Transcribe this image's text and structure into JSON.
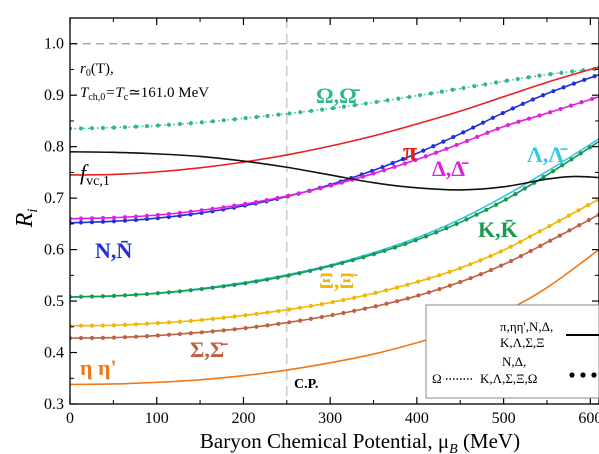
{
  "chart_data": {
    "type": "line",
    "xlabel": "Baryon Chemical Potential, μ",
    "xlabel_sub": "B",
    "xlabel_units": " (MeV)",
    "ylabel": "R",
    "ylabel_sub": "i",
    "xlim": [
      0,
      610
    ],
    "ylim": [
      0.3,
      1.05
    ],
    "x_ticks": [
      0,
      100,
      200,
      300,
      400,
      500,
      600
    ],
    "x_tick_labels": [
      "0",
      "100",
      "200",
      "300",
      "400",
      "500",
      "600"
    ],
    "y_ticks": [
      0.3,
      0.4,
      0.5,
      0.6,
      0.7,
      0.8,
      0.9,
      1.0
    ],
    "y_tick_labels": [
      "0.3",
      "0.4",
      "0.5",
      "0.6",
      "0.7",
      "0.8",
      "0.9",
      "1.0"
    ],
    "grid": false,
    "reference_lines": [
      {
        "orientation": "horizontal",
        "value": 1.0,
        "style": "dashed",
        "color": "#999999"
      },
      {
        "orientation": "vertical",
        "value": 250,
        "style": "dashed",
        "color": "#bbbbbb"
      }
    ],
    "series": [
      {
        "name": "Ω,Ω̄",
        "color": "#2fb88a",
        "style": "dotted",
        "x": [
          0,
          50,
          100,
          150,
          200,
          250,
          300,
          350,
          400,
          450,
          500,
          550,
          610
        ],
        "y": [
          0.835,
          0.837,
          0.841,
          0.847,
          0.855,
          0.864,
          0.874,
          0.886,
          0.899,
          0.913,
          0.927,
          0.94,
          0.952
        ]
      },
      {
        "name": "π",
        "color": "#e8201f",
        "style": "solid",
        "x": [
          0,
          50,
          100,
          150,
          200,
          250,
          300,
          350,
          400,
          450,
          500,
          550,
          610
        ],
        "y": [
          0.745,
          0.746,
          0.751,
          0.759,
          0.77,
          0.784,
          0.801,
          0.821,
          0.844,
          0.869,
          0.897,
          0.925,
          0.955
        ]
      },
      {
        "name": "N,N̄",
        "color": "#1f2fd8",
        "style": "solid_dots",
        "x": [
          0,
          50,
          100,
          150,
          200,
          250,
          300,
          350,
          400,
          450,
          500,
          550,
          610
        ],
        "y": [
          0.652,
          0.655,
          0.661,
          0.671,
          0.685,
          0.703,
          0.726,
          0.754,
          0.787,
          0.825,
          0.866,
          0.903,
          0.94
        ]
      },
      {
        "name": "Δ,Δ̄",
        "color": "#e020e0",
        "style": "solid_dots",
        "x": [
          0,
          50,
          100,
          150,
          200,
          250,
          300,
          350,
          400,
          450,
          500,
          550,
          610
        ],
        "y": [
          0.66,
          0.662,
          0.667,
          0.676,
          0.688,
          0.704,
          0.724,
          0.748,
          0.775,
          0.806,
          0.839,
          0.865,
          0.897
        ]
      },
      {
        "name": "Λ,Λ̄",
        "color": "#30c8e8",
        "style": "solid",
        "x": [
          0,
          50,
          100,
          150,
          200,
          250,
          300,
          350,
          400,
          450,
          500,
          550,
          610
        ],
        "y": [
          0.508,
          0.51,
          0.515,
          0.524,
          0.536,
          0.551,
          0.57,
          0.594,
          0.623,
          0.659,
          0.703,
          0.752,
          0.815
        ]
      },
      {
        "name": "K,K̄",
        "color": "#159a50",
        "style": "solid_dots",
        "x": [
          0,
          50,
          100,
          150,
          200,
          250,
          300,
          350,
          400,
          450,
          500,
          550,
          610
        ],
        "y": [
          0.508,
          0.51,
          0.515,
          0.523,
          0.534,
          0.549,
          0.568,
          0.591,
          0.619,
          0.653,
          0.695,
          0.745,
          0.81
        ]
      },
      {
        "name": "f_vc,1",
        "color": "#111111",
        "style": "solid",
        "x": [
          0,
          50,
          100,
          150,
          200,
          250,
          300,
          350,
          400,
          450,
          500,
          550,
          580,
          610
        ],
        "y": [
          0.79,
          0.789,
          0.786,
          0.781,
          0.772,
          0.76,
          0.745,
          0.73,
          0.72,
          0.716,
          0.722,
          0.737,
          0.742,
          0.74
        ]
      },
      {
        "name": "Ξ,Ξ̄",
        "color": "#f0b800",
        "style": "solid_dots",
        "x": [
          0,
          50,
          100,
          150,
          200,
          250,
          300,
          350,
          400,
          450,
          500,
          550,
          610
        ],
        "y": [
          0.452,
          0.453,
          0.457,
          0.463,
          0.472,
          0.483,
          0.497,
          0.515,
          0.537,
          0.564,
          0.599,
          0.643,
          0.698
        ]
      },
      {
        "name": "Σ,Σ̄",
        "color": "#c06040",
        "style": "solid_dots",
        "x": [
          0,
          50,
          100,
          150,
          200,
          250,
          300,
          350,
          400,
          450,
          500,
          550,
          610
        ],
        "y": [
          0.428,
          0.429,
          0.433,
          0.439,
          0.447,
          0.458,
          0.472,
          0.489,
          0.51,
          0.537,
          0.571,
          0.614,
          0.668
        ]
      },
      {
        "name": "η η'",
        "color": "#f07818",
        "style": "solid",
        "x": [
          0,
          50,
          100,
          150,
          200,
          250,
          300,
          350,
          400,
          450,
          500,
          550,
          610
        ],
        "y": [
          0.338,
          0.339,
          0.342,
          0.347,
          0.355,
          0.366,
          0.38,
          0.397,
          0.419,
          0.446,
          0.479,
          0.526,
          0.6
        ]
      }
    ],
    "annotations": {
      "info_line1": "r",
      "info_line1_sub": "0",
      "info_line1_rest": "(T),",
      "info_line2_a": "T",
      "info_line2_a_sub": "ch,0",
      "info_line2_b": "=T",
      "info_line2_b_sub": "c",
      "info_line2_c": "≃161.0 MeV",
      "cp_label": "C.P.",
      "fvc_label": "f",
      "fvc_label_sub": "vc,1"
    },
    "legend_box": {
      "row1_label_a": "π,ηη',N,Δ,",
      "row1_label_b": "K,Λ,Σ,Ξ",
      "row2_symbol": "Ω",
      "row2_label_a": "N,Δ,",
      "row2_label_b": "K,Λ,Σ,Ξ,Ω"
    }
  }
}
